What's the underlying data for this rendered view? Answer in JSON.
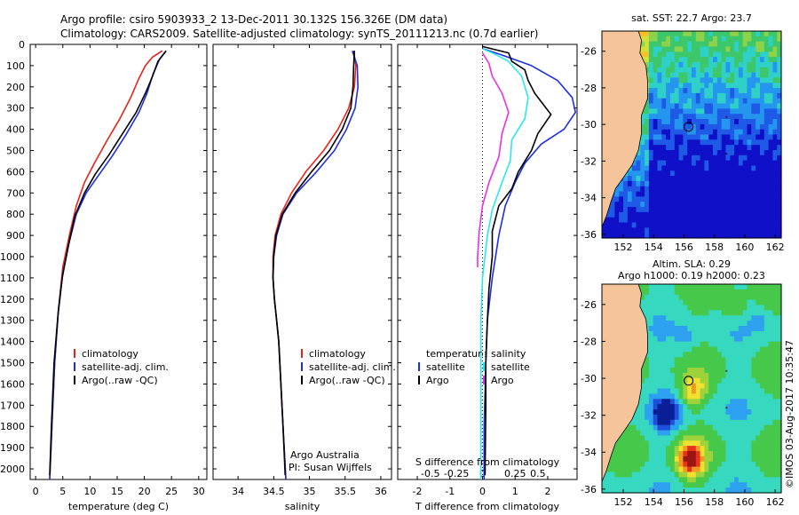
{
  "title": {
    "line1": "Argo profile: csiro 5903933_2 13-Dec-2011 30.132S 156.326E (DM data)",
    "line2": "Climatology: CARS2009. Satellite-adjusted climatology: synTS_20111213.nc (0.7d earlier)"
  },
  "colors": {
    "climatology": "#e8231c",
    "satellite": "#1f2ee0",
    "argo": "#000000",
    "salinity_sat": "#28e8ee",
    "salinity_argo": "#e82fe8",
    "land": "#f5c49a"
  },
  "depth_axis": {
    "ticks": [
      0,
      100,
      200,
      300,
      400,
      500,
      600,
      700,
      800,
      900,
      1000,
      1100,
      1200,
      1300,
      1400,
      1500,
      1600,
      1700,
      1800,
      1900,
      2000
    ],
    "range": [
      0,
      2050
    ]
  },
  "chart_data": [
    {
      "id": "temperature",
      "type": "line",
      "xlabel": "temperature (deg C)",
      "xlim": [
        -1,
        31.5
      ],
      "xticks": [
        0,
        5,
        10,
        15,
        20,
        25,
        30
      ],
      "legend": [
        "climatology",
        "satellite-adj. clim.",
        "Argo(..raw -QC)"
      ],
      "series": [
        {
          "name": "climatology",
          "color_key": "climatology",
          "points": [
            [
              23.3,
              30
            ],
            [
              21.5,
              60
            ],
            [
              20.2,
              100
            ],
            [
              19,
              160
            ],
            [
              17.5,
              250
            ],
            [
              15.5,
              350
            ],
            [
              13.2,
              450
            ],
            [
              10.8,
              560
            ],
            [
              9,
              650
            ],
            [
              7.5,
              760
            ],
            [
              6.2,
              900
            ],
            [
              5,
              1050
            ],
            [
              4.2,
              1250
            ],
            [
              3.5,
              1500
            ],
            [
              3,
              1800
            ],
            [
              2.6,
              2050
            ]
          ]
        },
        {
          "name": "satellite-adj. clim.",
          "color_key": "satellite",
          "points": [
            [
              24,
              30
            ],
            [
              22.8,
              70
            ],
            [
              21.6,
              140
            ],
            [
              20.5,
              230
            ],
            [
              19,
              320
            ],
            [
              16.5,
              430
            ],
            [
              14,
              530
            ],
            [
              11.5,
              620
            ],
            [
              9.3,
              700
            ],
            [
              7.5,
              800
            ],
            [
              6.2,
              930
            ],
            [
              5,
              1080
            ],
            [
              4.2,
              1250
            ],
            [
              3.5,
              1500
            ],
            [
              3,
              1800
            ],
            [
              2.6,
              2050
            ]
          ]
        },
        {
          "name": "Argo(..raw -QC)",
          "color_key": "argo",
          "points": [
            [
              24,
              30
            ],
            [
              22.5,
              80
            ],
            [
              21.5,
              150
            ],
            [
              20.2,
              230
            ],
            [
              18.5,
              320
            ],
            [
              16,
              420
            ],
            [
              13.5,
              520
            ],
            [
              11,
              610
            ],
            [
              9,
              700
            ],
            [
              7.2,
              810
            ],
            [
              6,
              950
            ],
            [
              4.9,
              1100
            ],
            [
              4.1,
              1280
            ],
            [
              3.4,
              1500
            ],
            [
              2.9,
              1800
            ],
            [
              2.6,
              2030
            ]
          ]
        }
      ]
    },
    {
      "id": "salinity",
      "type": "line",
      "xlabel": "salinity",
      "xlim": [
        33.65,
        36.15
      ],
      "xticks": [
        34,
        34.5,
        35,
        35.5,
        36
      ],
      "legend": [
        "climatology",
        "satellite-adj. clim.",
        "Argo(..raw -QC)"
      ],
      "note": [
        "Argo Australia",
        "PI: Susan Wijffels"
      ],
      "series": [
        {
          "name": "climatology",
          "color_key": "climatology",
          "points": [
            [
              35.62,
              30
            ],
            [
              35.65,
              100
            ],
            [
              35.63,
              200
            ],
            [
              35.55,
              300
            ],
            [
              35.4,
              400
            ],
            [
              35.2,
              500
            ],
            [
              34.95,
              600
            ],
            [
              34.75,
              700
            ],
            [
              34.6,
              800
            ],
            [
              34.52,
              900
            ],
            [
              34.49,
              1000
            ],
            [
              34.49,
              1100
            ],
            [
              34.51,
              1200
            ],
            [
              34.54,
              1300
            ],
            [
              34.57,
              1400
            ],
            [
              34.6,
              1600
            ],
            [
              34.63,
              1800
            ],
            [
              34.67,
              2050
            ]
          ]
        },
        {
          "name": "satellite-adj. clim.",
          "color_key": "satellite",
          "points": [
            [
              35.6,
              30
            ],
            [
              35.67,
              100
            ],
            [
              35.68,
              200
            ],
            [
              35.64,
              300
            ],
            [
              35.52,
              400
            ],
            [
              35.35,
              500
            ],
            [
              35.1,
              600
            ],
            [
              34.82,
              700
            ],
            [
              34.63,
              800
            ],
            [
              34.54,
              900
            ],
            [
              34.5,
              1000
            ],
            [
              34.49,
              1100
            ],
            [
              34.51,
              1200
            ],
            [
              34.54,
              1300
            ],
            [
              34.57,
              1400
            ],
            [
              34.6,
              1600
            ],
            [
              34.63,
              1800
            ],
            [
              34.67,
              2050
            ]
          ]
        },
        {
          "name": "Argo(..raw -QC)",
          "color_key": "argo",
          "points": [
            [
              35.63,
              30
            ],
            [
              35.62,
              100
            ],
            [
              35.61,
              200
            ],
            [
              35.58,
              300
            ],
            [
              35.46,
              400
            ],
            [
              35.28,
              500
            ],
            [
              35.03,
              600
            ],
            [
              34.8,
              700
            ],
            [
              34.62,
              800
            ],
            [
              34.53,
              900
            ],
            [
              34.5,
              1000
            ],
            [
              34.49,
              1100
            ],
            [
              34.51,
              1200
            ],
            [
              34.54,
              1300
            ],
            [
              34.57,
              1400
            ],
            [
              34.6,
              1600
            ],
            [
              34.63,
              1800
            ],
            [
              34.66,
              2030
            ]
          ]
        }
      ]
    },
    {
      "id": "difference",
      "type": "line",
      "xlabel": "T difference from climatology",
      "xlabel2": "S difference from climatology",
      "xlim": [
        -2.6,
        2.9
      ],
      "xticks": [
        -2,
        -1,
        0,
        1,
        2
      ],
      "xticks2": [
        "-0.5",
        "-0.25",
        "0",
        "0.25",
        "0.5"
      ],
      "legend_temperature": [
        "temperature",
        "satellite",
        "Argo"
      ],
      "legend_salinity": [
        "salinity",
        "satellite",
        "Argo"
      ],
      "series": [
        {
          "name": "T satellite",
          "color_key": "satellite",
          "points": [
            [
              0,
              20
            ],
            [
              0.6,
              50
            ],
            [
              1.5,
              100
            ],
            [
              2.3,
              170
            ],
            [
              2.75,
              250
            ],
            [
              2.85,
              320
            ],
            [
              2.5,
              400
            ],
            [
              1.8,
              470
            ],
            [
              1.3,
              560
            ],
            [
              1,
              650
            ],
            [
              0.7,
              760
            ],
            [
              0.5,
              900
            ],
            [
              0.3,
              1100
            ],
            [
              0.15,
              1300
            ],
            [
              0.1,
              1500
            ],
            [
              0.05,
              1800
            ],
            [
              0.05,
              2050
            ]
          ]
        },
        {
          "name": "T Argo",
          "color_key": "argo",
          "points": [
            [
              0,
              10
            ],
            [
              0.8,
              40
            ],
            [
              0.9,
              80
            ],
            [
              1.3,
              120
            ],
            [
              1.4,
              170
            ],
            [
              1.6,
              230
            ],
            [
              2.1,
              330
            ],
            [
              1.7,
              420
            ],
            [
              1.5,
              500
            ],
            [
              1.1,
              600
            ],
            [
              0.9,
              680
            ],
            [
              0.5,
              760
            ],
            [
              0.3,
              880
            ],
            [
              0.3,
              1000
            ],
            [
              0.2,
              1150
            ],
            [
              0.15,
              1300
            ],
            [
              0.1,
              1500
            ],
            [
              0.1,
              1700
            ],
            [
              0.08,
              2030
            ]
          ]
        },
        {
          "name": "S satellite",
          "color_key": "salinity_sat",
          "points": [
            [
              0,
              20
            ],
            [
              0.3,
              40
            ],
            [
              0.8,
              80
            ],
            [
              1.2,
              150
            ],
            [
              1.4,
              250
            ],
            [
              1.3,
              350
            ],
            [
              0.9,
              450
            ],
            [
              0.85,
              550
            ],
            [
              0.6,
              650
            ],
            [
              0.3,
              780
            ],
            [
              0.15,
              900
            ],
            [
              0,
              1100
            ],
            [
              -0.05,
              1300
            ],
            [
              -0.05,
              1600
            ],
            [
              -0.05,
              1800
            ],
            [
              -0.05,
              2050
            ]
          ]
        },
        {
          "name": "S Argo",
          "color_key": "salinity_argo",
          "points": [
            [
              0,
              40
            ],
            [
              0.2,
              90
            ],
            [
              0.3,
              150
            ],
            [
              0.6,
              230
            ],
            [
              0.8,
              320
            ],
            [
              0.6,
              420
            ],
            [
              0.5,
              530
            ],
            [
              0.2,
              650
            ],
            [
              0,
              760
            ],
            [
              -0.1,
              880
            ],
            [
              -0.15,
              1000
            ],
            [
              -0.15,
              1050
            ]
          ]
        }
      ]
    },
    {
      "id": "sst_map",
      "type": "heatmap",
      "title": "sat. SST: 22.7 Argo: 23.7",
      "xticks": [
        152,
        154,
        156,
        158,
        160,
        162
      ],
      "yticks": [
        -26,
        -28,
        -30,
        -32,
        -34,
        -36
      ],
      "xlim": [
        150.6,
        162.4
      ],
      "ylim": [
        -36.2,
        -24.9
      ],
      "float_position": [
        156.3,
        -30.13
      ]
    },
    {
      "id": "sla_map",
      "type": "heatmap",
      "title": "Altim. SLA: 0.29",
      "subtitle": "Argo h1000: 0.19 h2000: 0.23",
      "xticks": [
        152,
        154,
        156,
        158,
        160,
        162
      ],
      "yticks": [
        -26,
        -28,
        -30,
        -32,
        -34,
        -36
      ],
      "xlim": [
        150.6,
        162.4
      ],
      "ylim": [
        -36.2,
        -24.9
      ],
      "float_position": [
        156.3,
        -30.13
      ]
    }
  ],
  "credit": "©IMOS 03-Aug-2017 10:35:47"
}
